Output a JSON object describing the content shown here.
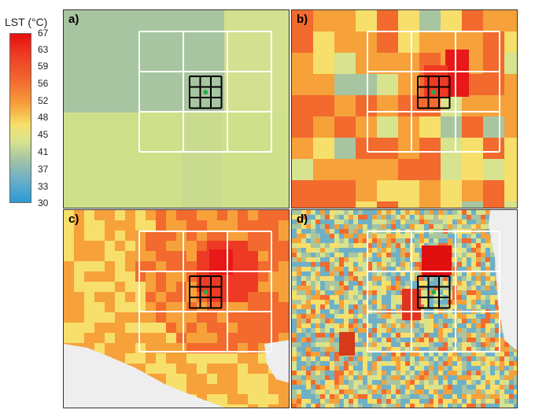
{
  "legend": {
    "title": "LST (°C)",
    "ticks": [
      "67",
      "63",
      "59",
      "56",
      "52",
      "48",
      "45",
      "41",
      "37",
      "33",
      "30"
    ],
    "colors": [
      "#e60f0f",
      "#ee3a24",
      "#f26a2e",
      "#f6a13a",
      "#f7df6b",
      "#d7e38e",
      "#a8c5a1",
      "#6fb0c7",
      "#2b9ad6"
    ]
  },
  "panels": [
    {
      "label": "a)"
    },
    {
      "label": "b)"
    },
    {
      "label": "c)"
    },
    {
      "label": "d)"
    }
  ],
  "colors": {
    "grid_outer": "#ffffff",
    "grid_inner": "#000000",
    "point": "#2aa84a",
    "no_data": "#eeeeee"
  }
}
